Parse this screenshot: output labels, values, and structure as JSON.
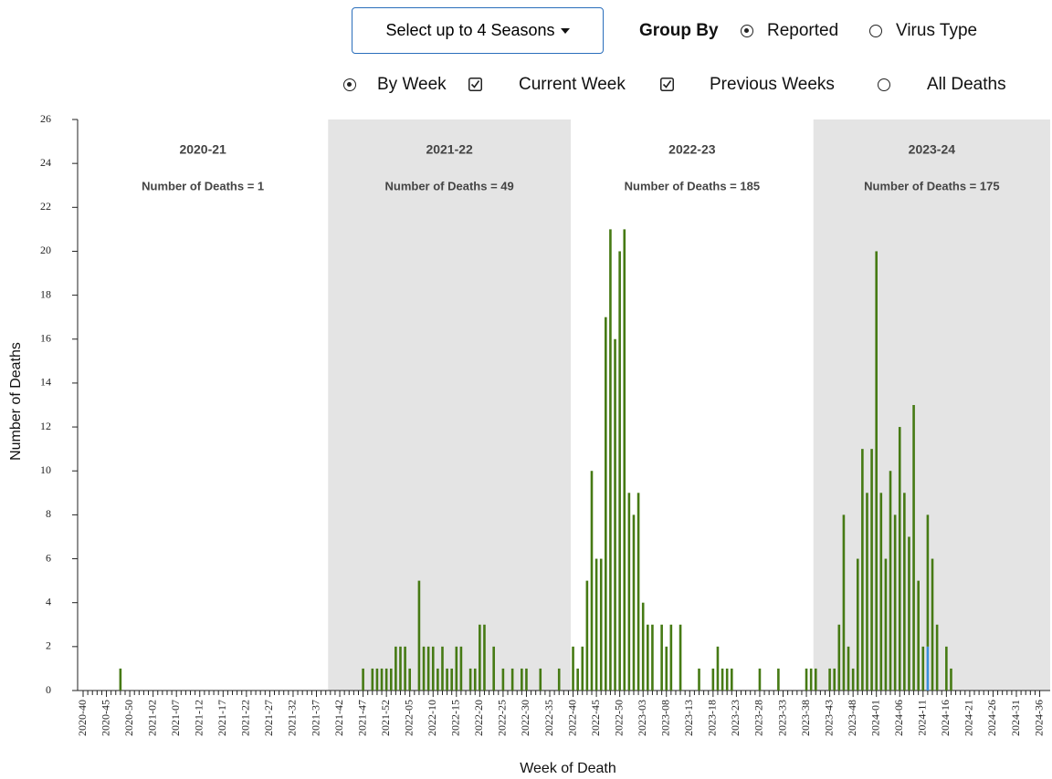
{
  "controls": {
    "season_button": "Select up to 4 Seasons",
    "group_by_label": "Group By",
    "group_by_options": [
      "Reported",
      "Virus Type"
    ],
    "by_week": "By Week",
    "all_deaths": "All Deaths"
  },
  "chart_data": {
    "type": "bar",
    "x_label": "Week of Death",
    "y_label": "Number of Deaths",
    "seasons": [
      {
        "name": "2020-21",
        "deaths": "Number of Deaths = 1"
      },
      {
        "name": "2021-22",
        "deaths": "Number of Deaths = 49"
      },
      {
        "name": "2022-23",
        "deaths": "Number of Deaths = 185"
      },
      {
        "name": "2023-24",
        "deaths": "Number of Deaths = 175"
      }
    ],
    "categories": [
      "2020-40",
      null,
      null,
      null,
      null,
      "2020-45",
      null,
      null,
      null,
      null,
      "2020-50",
      null,
      null,
      null,
      null,
      "2021-02",
      null,
      null,
      null,
      null,
      "2021-07",
      null,
      null,
      null,
      null,
      "2021-12",
      null,
      null,
      null,
      null,
      "2021-17",
      null,
      null,
      null,
      null,
      "2021-22",
      null,
      null,
      null,
      null,
      "2021-27",
      null,
      null,
      null,
      null,
      "2021-32",
      null,
      null,
      null,
      null,
      "2021-37",
      null,
      null,
      null,
      null,
      "2021-42",
      null,
      null,
      null,
      null,
      "2021-47",
      null,
      null,
      null,
      null,
      "2021-52",
      null,
      null,
      null,
      null,
      "2022-05",
      null,
      null,
      null,
      null,
      "2022-10",
      null,
      null,
      null,
      null,
      "2022-15",
      null,
      null,
      null,
      null,
      "2022-20",
      null,
      null,
      null,
      null,
      "2022-25",
      null,
      null,
      null,
      null,
      "2022-30",
      null,
      null,
      null,
      null,
      "2022-35",
      null,
      null,
      null,
      null,
      "2022-40",
      null,
      null,
      null,
      null,
      "2022-45",
      null,
      null,
      null,
      null,
      "2022-50",
      null,
      null,
      null,
      null,
      "2023-03",
      null,
      null,
      null,
      null,
      "2023-08",
      null,
      null,
      null,
      null,
      "2023-13",
      null,
      null,
      null,
      null,
      "2023-18",
      null,
      null,
      null,
      null,
      "2023-23",
      null,
      null,
      null,
      null,
      "2023-28",
      null,
      null,
      null,
      null,
      "2023-33",
      null,
      null,
      null,
      null,
      "2023-38",
      null,
      null,
      null,
      null,
      "2023-43",
      null,
      null,
      null,
      null,
      "2023-48",
      null,
      null,
      null,
      null,
      "2024-01",
      null,
      null,
      null,
      null,
      "2024-06",
      null,
      null,
      null,
      null,
      "2024-11",
      null,
      null,
      null,
      null,
      "2024-16",
      null,
      null,
      null,
      null,
      "2024-21",
      null,
      null,
      null,
      null,
      "2024-26",
      null,
      null,
      null,
      null,
      "2024-31",
      null,
      null,
      null,
      null,
      "2024-36"
    ],
    "series": [
      {
        "name": "Current Week",
        "color": "#3b8fd9",
        "values": [
          0,
          0,
          0,
          0,
          0,
          0,
          0,
          0,
          0,
          0,
          0,
          0,
          0,
          0,
          0,
          0,
          0,
          0,
          0,
          0,
          0,
          0,
          0,
          0,
          0,
          0,
          0,
          0,
          0,
          0,
          0,
          0,
          0,
          0,
          0,
          0,
          0,
          0,
          0,
          0,
          0,
          0,
          0,
          0,
          0,
          0,
          0,
          0,
          0,
          0,
          0,
          0,
          0,
          0,
          0,
          0,
          0,
          0,
          0,
          0,
          0,
          0,
          0,
          0,
          0,
          0,
          0,
          0,
          0,
          0,
          0,
          0,
          0,
          0,
          0,
          0,
          0,
          0,
          0,
          0,
          0,
          0,
          0,
          0,
          0,
          0,
          0,
          0,
          0,
          0,
          0,
          0,
          0,
          0,
          0,
          0,
          0,
          0,
          0,
          0,
          0,
          0,
          0,
          0,
          0,
          0,
          0,
          0,
          0,
          0,
          0,
          0,
          0,
          0,
          0,
          0,
          0,
          0,
          0,
          0,
          0,
          0,
          0,
          0,
          0,
          0,
          0,
          0,
          0,
          0,
          0,
          0,
          0,
          0,
          0,
          0,
          0,
          0,
          0,
          0,
          0,
          0,
          0,
          0,
          0,
          0,
          0,
          0,
          0,
          0,
          0,
          0,
          0,
          0,
          0,
          0,
          0,
          0,
          0,
          0,
          0,
          0,
          0,
          0,
          0,
          0,
          0,
          0,
          0,
          0,
          0,
          0,
          0,
          0,
          0,
          0,
          0,
          0,
          0,
          0,
          0,
          2,
          0,
          0,
          0,
          0,
          0,
          0,
          0,
          0,
          0,
          0,
          0,
          0,
          0,
          0,
          0,
          0,
          0,
          0,
          0,
          0,
          0,
          0,
          0,
          0
        ]
      },
      {
        "name": "Previous Weeks",
        "color": "#467a14",
        "values": [
          0,
          0,
          0,
          0,
          0,
          0,
          0,
          0,
          1,
          0,
          0,
          0,
          0,
          0,
          0,
          0,
          0,
          0,
          0,
          0,
          0,
          0,
          0,
          0,
          0,
          0,
          0,
          0,
          0,
          0,
          0,
          0,
          0,
          0,
          0,
          0,
          0,
          0,
          0,
          0,
          0,
          0,
          0,
          0,
          0,
          0,
          0,
          0,
          0,
          0,
          0,
          0,
          0,
          0,
          0,
          0,
          0,
          0,
          0,
          0,
          1,
          0,
          1,
          1,
          1,
          1,
          1,
          2,
          2,
          2,
          1,
          0,
          5,
          2,
          2,
          2,
          1,
          2,
          1,
          1,
          2,
          2,
          0,
          1,
          1,
          3,
          3,
          0,
          2,
          0,
          1,
          0,
          1,
          0,
          1,
          1,
          0,
          0,
          1,
          0,
          0,
          0,
          1,
          0,
          0,
          2,
          1,
          2,
          5,
          10,
          6,
          6,
          17,
          21,
          16,
          20,
          21,
          9,
          8,
          9,
          4,
          3,
          3,
          0,
          3,
          2,
          3,
          0,
          3,
          0,
          0,
          0,
          1,
          0,
          0,
          1,
          2,
          1,
          1,
          1,
          0,
          0,
          0,
          0,
          0,
          1,
          0,
          0,
          0,
          1,
          0,
          0,
          0,
          0,
          0,
          1,
          1,
          1,
          0,
          0,
          1,
          1,
          3,
          8,
          2,
          1,
          6,
          11,
          9,
          11,
          20,
          9,
          6,
          10,
          8,
          12,
          9,
          7,
          13,
          5,
          2,
          6,
          6,
          3,
          0,
          2,
          1,
          0,
          0,
          0,
          0,
          0,
          0,
          0,
          0,
          0,
          0,
          0,
          0,
          0,
          0,
          0,
          0,
          0,
          0,
          0
        ]
      }
    ],
    "ylim": [
      0,
      26
    ],
    "yticks": [
      0,
      2,
      4,
      6,
      8,
      10,
      12,
      14,
      16,
      18,
      20,
      22,
      24,
      26
    ]
  }
}
